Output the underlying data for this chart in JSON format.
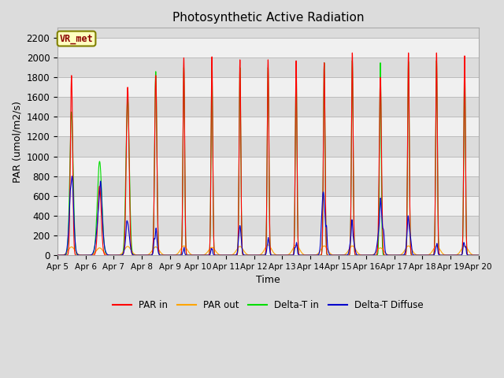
{
  "title": "Photosynthetic Active Radiation",
  "ylabel": "PAR (umol/m2/s)",
  "xlabel": "Time",
  "ylim": [
    0,
    2300
  ],
  "yticks": [
    0,
    200,
    400,
    600,
    800,
    1000,
    1200,
    1400,
    1600,
    1800,
    2000,
    2200
  ],
  "xtick_labels": [
    "Apr 5",
    "Apr 6",
    "Apr 7",
    "Apr 8",
    "Apr 9",
    "Apr 10",
    "Apr 11",
    "Apr 12",
    "Apr 13",
    "Apr 14",
    "Apr 15",
    "Apr 16",
    "Apr 17",
    "Apr 18",
    "Apr 19",
    "Apr 20"
  ],
  "annotation_text": "VR_met",
  "annotation_color": "#8B0000",
  "annotation_bg": "#FFFFC0",
  "annotation_border": "#808000",
  "colors": {
    "PAR_in": "#FF0000",
    "PAR_out": "#FFA500",
    "Delta_T_in": "#00DD00",
    "Delta_T_Diffuse": "#0000CC"
  },
  "bg_light": "#F0F0F0",
  "bg_dark": "#DCDCDC",
  "num_days": 15,
  "par_in_peaks": [
    1820,
    700,
    1700,
    1820,
    2000,
    2010,
    1980,
    1980,
    1970,
    1950,
    2050,
    1800,
    2050,
    2050,
    2020
  ],
  "par_out_peaks": [
    85,
    75,
    90,
    85,
    95,
    80,
    90,
    105,
    105,
    95,
    95,
    75,
    95,
    95,
    95
  ],
  "delta_t_peaks": [
    1450,
    950,
    1580,
    1860,
    1900,
    1900,
    1900,
    1900,
    1900,
    1950,
    1970,
    1950,
    1960,
    1970,
    1970
  ],
  "diffuse_peaks": [
    800,
    750,
    350,
    275,
    80,
    70,
    300,
    180,
    130,
    640,
    360,
    580,
    400,
    120,
    130
  ],
  "par_in_widths": [
    0.04,
    0.06,
    0.05,
    0.04,
    0.03,
    0.03,
    0.03,
    0.03,
    0.03,
    0.03,
    0.03,
    0.04,
    0.03,
    0.03,
    0.03
  ],
  "delta_t_widths": [
    0.06,
    0.08,
    0.06,
    0.04,
    0.03,
    0.03,
    0.03,
    0.03,
    0.03,
    0.03,
    0.03,
    0.03,
    0.03,
    0.03,
    0.03
  ],
  "diffuse_widths": [
    0.08,
    0.1,
    0.07,
    0.05,
    0.03,
    0.03,
    0.05,
    0.04,
    0.04,
    0.07,
    0.06,
    0.08,
    0.06,
    0.04,
    0.04
  ]
}
